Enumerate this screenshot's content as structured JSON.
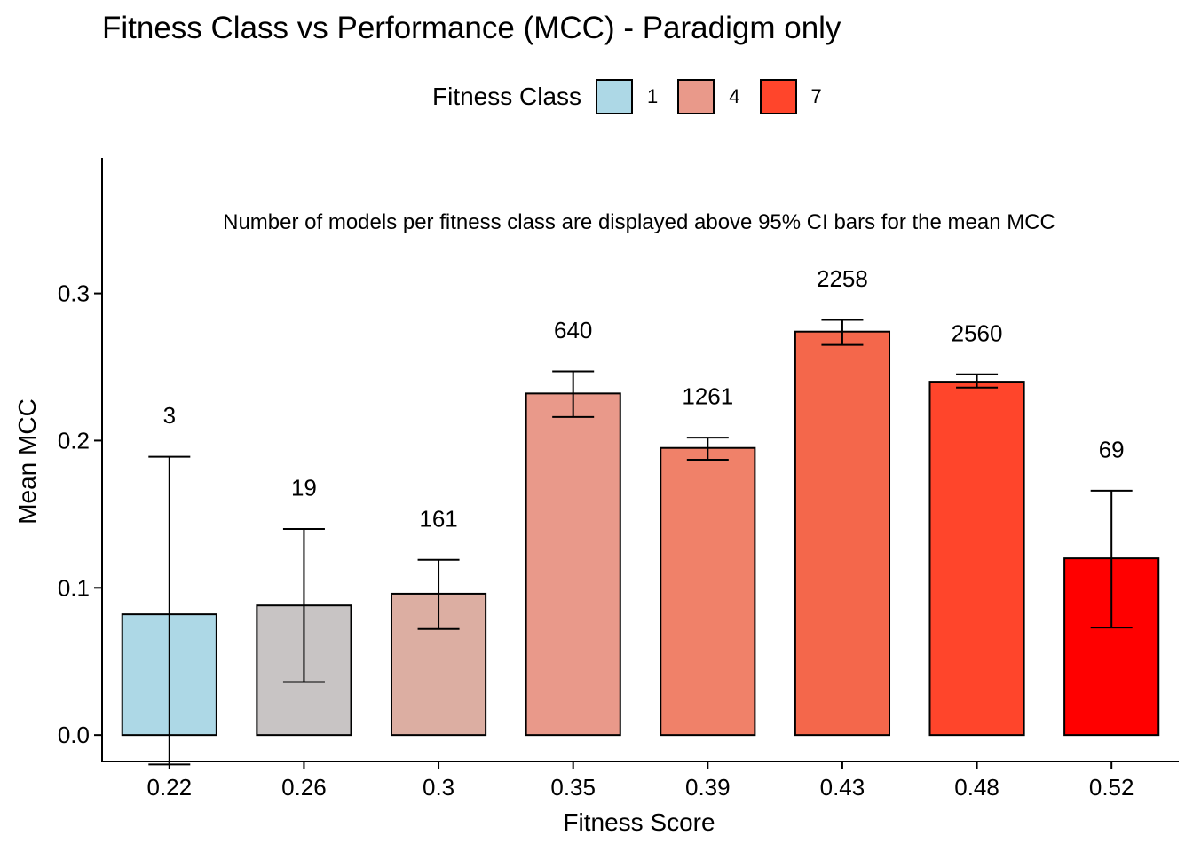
{
  "title": "Fitness Class vs Performance (MCC) - Paradigm only",
  "legend": {
    "title": "Fitness Class",
    "items": [
      {
        "label": "1",
        "color": "#ADD8E6"
      },
      {
        "label": "4",
        "color": "#E9998A"
      },
      {
        "label": "7",
        "color": "#FF452B"
      }
    ]
  },
  "chart_data": {
    "type": "bar",
    "title": "Fitness Class vs Performance (MCC) - Paradigm only",
    "xlabel": "Fitness Score",
    "ylabel": "Mean MCC",
    "annotation": "Number of models per fitness class are displayed above 95% CI bars for the mean MCC",
    "categories": [
      "0.22",
      "0.26",
      "0.3",
      "0.35",
      "0.39",
      "0.43",
      "0.48",
      "0.52"
    ],
    "values": [
      0.082,
      0.088,
      0.096,
      0.232,
      0.195,
      0.274,
      0.24,
      0.12
    ],
    "ci_lower": [
      -0.02,
      0.036,
      0.072,
      0.216,
      0.187,
      0.265,
      0.236,
      0.073
    ],
    "ci_upper": [
      0.189,
      0.14,
      0.119,
      0.247,
      0.202,
      0.282,
      0.245,
      0.166
    ],
    "counts": [
      "3",
      "19",
      "161",
      "640",
      "1261",
      "2258",
      "2560",
      "69"
    ],
    "colors": [
      "#ADD8E6",
      "#C8C4C4",
      "#DCAEA2",
      "#E9998A",
      "#F08169",
      "#F4674B",
      "#FF452B",
      "#FF0000"
    ],
    "yticks": [
      "0.0",
      "0.1",
      "0.2",
      "0.3"
    ],
    "ylim": [
      -0.018,
      0.392
    ],
    "grid": false,
    "legend_position": "top"
  }
}
